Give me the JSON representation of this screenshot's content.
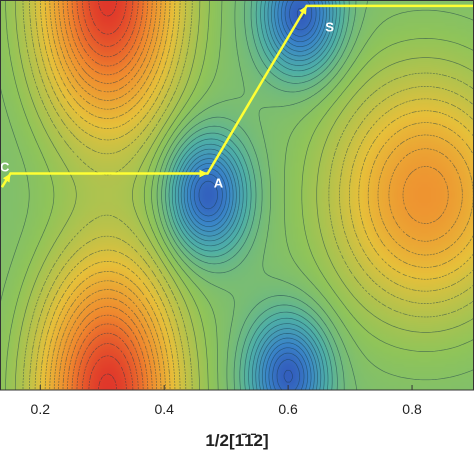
{
  "chart_data": {
    "type": "heatmap",
    "subtype": "contour energy surface",
    "title": "",
    "xlabel": "1/2[1̄1̄2]",
    "ylabel": "",
    "xlim": [
      0.135,
      0.9
    ],
    "x_ticks": [
      {
        "value": 0.2,
        "label": "0.2"
      },
      {
        "value": 0.4,
        "label": "0.4"
      },
      {
        "value": 0.6,
        "label": "0.6"
      },
      {
        "value": 0.8,
        "label": "0.8"
      }
    ],
    "colormap": [
      "#2f4bb8",
      "#3a86c8",
      "#4fb0a6",
      "#8fc45a",
      "#e7c03a",
      "#f0892e",
      "#e0372a"
    ],
    "contour_line_color": "#1a3a4a",
    "maxima": [
      {
        "x": 0.31,
        "y": 0.0
      },
      {
        "x": 0.31,
        "y": 1.0
      }
    ],
    "minima": [
      {
        "x": 0.82,
        "y": 0.5,
        "level": 0.8
      }
    ],
    "low_valleys": [
      {
        "x": 0.6,
        "y": 0.04
      },
      {
        "x": 0.62,
        "y": 0.96
      },
      {
        "x": 0.47,
        "y": 0.5
      }
    ],
    "path": {
      "color": "#ffff33",
      "points": [
        {
          "x": 0.138,
          "y": 0.52
        },
        {
          "x": 0.152,
          "y": 0.555
        },
        {
          "x": 0.47,
          "y": 0.555
        },
        {
          "x": 0.63,
          "y": 0.985
        },
        {
          "x": 0.9,
          "y": 0.985
        }
      ],
      "labels": [
        {
          "name": "C",
          "x": 0.135,
          "y": 0.57
        },
        {
          "name": "A",
          "x": 0.48,
          "y": 0.53
        },
        {
          "name": "S",
          "x": 0.66,
          "y": 0.93
        }
      ]
    }
  }
}
